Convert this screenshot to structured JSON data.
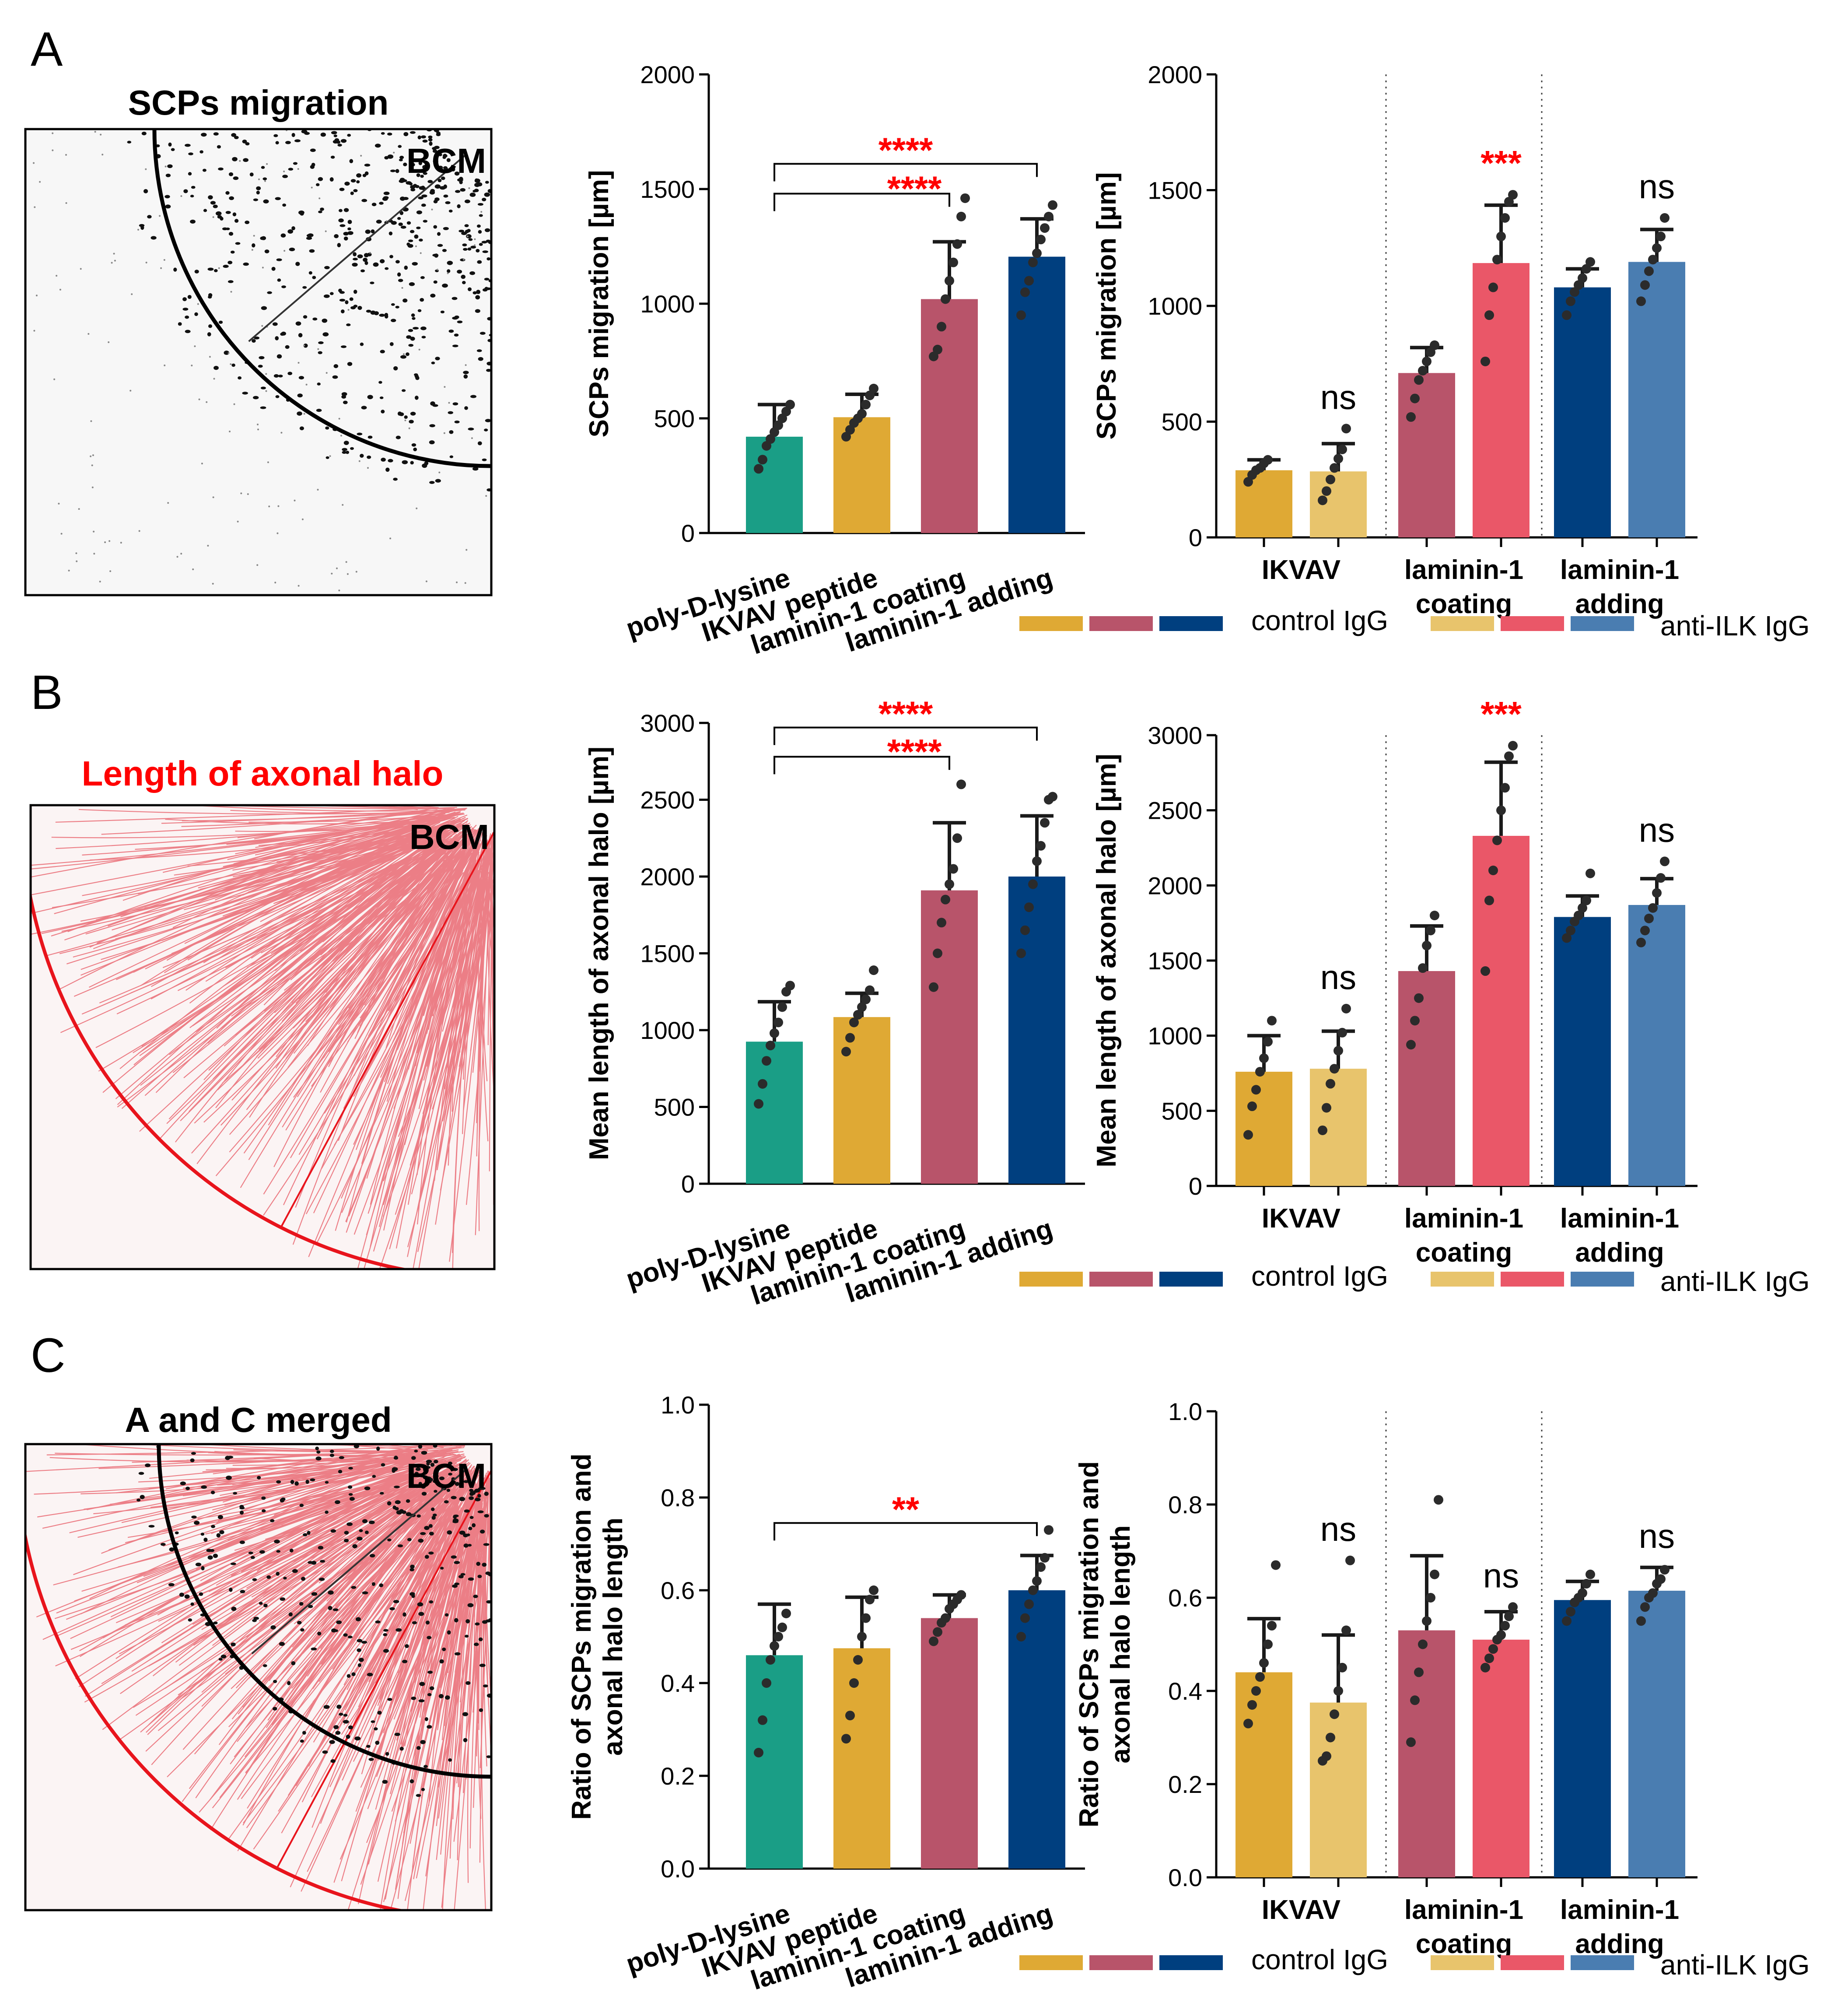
{
  "panels": {
    "A": {
      "letter": "A",
      "image": {
        "title": "SCPs migration",
        "title_color": "#000000",
        "tag": "BCM",
        "kind": "gray"
      },
      "charts": [
        {
          "type": "bar",
          "ylabel": "SCPs migration [µm]",
          "ylim": [
            0,
            2000
          ],
          "yticks": [
            "0",
            "500",
            "1000",
            "1500",
            "2000"
          ],
          "categories": [
            "poly-D-lysine",
            "IKVAV peptide",
            "laminin-1 coating",
            "laminin-1 adding"
          ],
          "values": [
            420,
            505,
            1020,
            1205
          ],
          "errors": [
            140,
            100,
            250,
            165
          ],
          "points": [
            [
              280,
              320,
              380,
              410,
              440,
              470,
              500,
              530,
              560
            ],
            [
              420,
              450,
              480,
              500,
              520,
              560,
              600,
              630
            ],
            [
              770,
              800,
              900,
              1020,
              1100,
              1180,
              1260,
              1380,
              1460
            ],
            [
              950,
              1050,
              1100,
              1180,
              1220,
              1280,
              1330,
              1380,
              1430
            ]
          ],
          "colors": [
            "#1a9e86",
            "#dfa934",
            "#b8546a",
            "#003f7f"
          ],
          "brackets": [
            {
              "from": 0,
              "to": 2,
              "level": 1480,
              "label": "****"
            },
            {
              "from": 0,
              "to": 3,
              "level": 1610,
              "label": "****"
            }
          ]
        },
        {
          "type": "bar",
          "ylabel": "SCPs migration [µm]",
          "ylim": [
            0,
            2000
          ],
          "yticks": [
            "0",
            "500",
            "1000",
            "1500",
            "2000"
          ],
          "groups": [
            "IKVAV",
            "laminin-1\ncoating",
            "laminin-1\nadding"
          ],
          "series": [
            {
              "name": "control IgG",
              "values": [
                290,
                710,
                1080
              ],
              "errors": [
                45,
                110,
                80
              ],
              "points": [
                [
                  240,
                  270,
                  290,
                  300,
                  320,
                  335
                ],
                [
                  520,
                  600,
                  680,
                  720,
                  760,
                  800,
                  830
                ],
                [
                  960,
                  1020,
                  1060,
                  1090,
                  1120,
                  1160,
                  1190
                ]
              ]
            },
            {
              "name": "anti-ILK IgG",
              "values": [
                285,
                1185,
                1190
              ],
              "errors": [
                120,
                250,
                140
              ],
              "points": [
                [
                  160,
                  200,
                  250,
                  300,
                  340,
                  380,
                  470
                ],
                [
                  760,
                  960,
                  1080,
                  1200,
                  1300,
                  1380,
                  1450,
                  1480
                ],
                [
                  1020,
                  1090,
                  1150,
                  1200,
                  1250,
                  1300,
                  1380
                ]
              ]
            }
          ],
          "colors": [
            [
              "#dfa934",
              "#b8546a",
              "#003f7f"
            ],
            [
              "#e8c46c",
              "#ea5768",
              "#4a7db1"
            ]
          ],
          "annotations": [
            {
              "group": 0,
              "series": 1,
              "label": "ns",
              "kind": "ns"
            },
            {
              "group": 1,
              "series": 1,
              "label": "***",
              "kind": "sig"
            },
            {
              "group": 2,
              "series": 1,
              "label": "ns",
              "kind": "ns"
            }
          ]
        }
      ]
    },
    "B": {
      "letter": "B",
      "image": {
        "title": "Length of axonal halo",
        "title_color": "#ff0000",
        "tag": "BCM",
        "kind": "red"
      },
      "charts": [
        {
          "type": "bar",
          "ylabel": "Mean length of axonal halo [µm]",
          "ylim": [
            0,
            3000
          ],
          "yticks": [
            "0",
            "500",
            "1000",
            "1500",
            "2000",
            "2500",
            "3000"
          ],
          "categories": [
            "poly-D-lysine",
            "IKVAV peptide",
            "laminin-1 coating",
            "laminin-1 adding"
          ],
          "values": [
            925,
            1085,
            1910,
            2000
          ],
          "errors": [
            260,
            155,
            440,
            395
          ],
          "points": [
            [
              520,
              650,
              800,
              900,
              980,
              1050,
              1150,
              1250,
              1290
            ],
            [
              860,
              950,
              1050,
              1100,
              1150,
              1200,
              1260,
              1390
            ],
            [
              1280,
              1500,
              1700,
              1850,
              1950,
              2050,
              2250,
              2600
            ],
            [
              1500,
              1650,
              1800,
              1950,
              2100,
              2200,
              2350,
              2500,
              2520
            ]
          ],
          "colors": [
            "#1a9e86",
            "#dfa934",
            "#b8546a",
            "#003f7f"
          ],
          "brackets": [
            {
              "from": 0,
              "to": 2,
              "level": 2780,
              "label": "****"
            },
            {
              "from": 0,
              "to": 3,
              "level": 2970,
              "label": "****"
            }
          ]
        },
        {
          "type": "bar",
          "ylabel": "Mean length of axonal halo [µm]",
          "ylim": [
            0,
            3000
          ],
          "yticks": [
            "0",
            "500",
            "1000",
            "1500",
            "2000",
            "2500",
            "3000"
          ],
          "groups": [
            "IKVAV",
            "laminin-1\ncoating",
            "laminin-1\nadding"
          ],
          "series": [
            {
              "name": "control IgG",
              "values": [
                760,
                1430,
                1790
              ],
              "errors": [
                240,
                300,
                140
              ],
              "points": [
                [
                  340,
                  530,
                  640,
                  760,
                  850,
                  960,
                  1100
                ],
                [
                  940,
                  1100,
                  1250,
                  1450,
                  1600,
                  1700,
                  1800
                ],
                [
                  1650,
                  1700,
                  1760,
                  1800,
                  1850,
                  1900,
                  2080
                ]
              ],
              "bar_color": "x"
            },
            {
              "name": "anti-ILK IgG",
              "values": [
                780,
                2330,
                1870
              ],
              "errors": [
                250,
                490,
                175
              ],
              "points": [
                [
                  370,
                  520,
                  680,
                  780,
                  900,
                  1020,
                  1180
                ],
                [
                  1430,
                  1900,
                  2100,
                  2300,
                  2500,
                  2650,
                  2860,
                  2930
                ],
                [
                  1620,
                  1700,
                  1780,
                  1850,
                  1950,
                  2050,
                  2160
                ]
              ]
            }
          ],
          "colors": [
            [
              "#dfa934",
              "#b8546a",
              "#003f7f"
            ],
            [
              "#e8c46c",
              "#ea5768",
              "#4a7db1"
            ]
          ],
          "annotations": [
            {
              "group": 0,
              "series": 1,
              "label": "ns",
              "kind": "ns"
            },
            {
              "group": 1,
              "series": 1,
              "label": "***",
              "kind": "sig"
            },
            {
              "group": 2,
              "series": 1,
              "label": "ns",
              "kind": "ns"
            }
          ]
        }
      ]
    },
    "C": {
      "letter": "C",
      "image": {
        "title": "A and C merged",
        "title_color": "#000000",
        "tag": "BCM",
        "kind": "merged"
      },
      "charts": [
        {
          "type": "bar",
          "ylabel": "Ratio of SCPs migration and\naxonal halo length",
          "ylim": [
            0,
            1.0
          ],
          "yticks": [
            "0.0",
            "0.2",
            "0.4",
            "0.6",
            "0.8",
            "1.0"
          ],
          "categories": [
            "poly-D-lysine",
            "IKVAV peptide",
            "laminin-1 coating",
            "laminin-1 adding"
          ],
          "values": [
            0.46,
            0.475,
            0.54,
            0.6
          ],
          "errors": [
            0.11,
            0.11,
            0.05,
            0.075
          ],
          "points": [
            [
              0.25,
              0.32,
              0.4,
              0.45,
              0.48,
              0.5,
              0.52,
              0.55
            ],
            [
              0.28,
              0.33,
              0.4,
              0.45,
              0.5,
              0.54,
              0.58,
              0.6
            ],
            [
              0.49,
              0.51,
              0.53,
              0.54,
              0.56,
              0.57,
              0.58,
              0.59
            ],
            [
              0.5,
              0.54,
              0.57,
              0.6,
              0.62,
              0.65,
              0.67,
              0.73
            ]
          ],
          "colors": [
            "#1a9e86",
            "#dfa934",
            "#b8546a",
            "#003f7f"
          ],
          "brackets": [
            {
              "from": 0,
              "to": 3,
              "level": 0.745,
              "label": "**"
            }
          ]
        },
        {
          "type": "bar",
          "ylabel": "Ratio of SCPs migration and\naxonal halo length",
          "ylim": [
            0,
            1.0
          ],
          "yticks": [
            "0.0",
            "0.2",
            "0.4",
            "0.6",
            "0.8",
            "1.0"
          ],
          "groups": [
            "IKVAV",
            "laminin-1\ncoating",
            "laminin-1\nadding"
          ],
          "series": [
            {
              "name": "control IgG",
              "values": [
                0.44,
                0.53,
                0.595
              ],
              "errors": [
                0.115,
                0.16,
                0.04
              ],
              "points": [
                [
                  0.33,
                  0.37,
                  0.4,
                  0.43,
                  0.46,
                  0.5,
                  0.54,
                  0.67
                ],
                [
                  0.29,
                  0.38,
                  0.44,
                  0.5,
                  0.55,
                  0.6,
                  0.65,
                  0.81
                ],
                [
                  0.55,
                  0.57,
                  0.59,
                  0.6,
                  0.61,
                  0.63,
                  0.65
                ]
              ]
            },
            {
              "name": "anti-ILK IgG",
              "values": [
                0.375,
                0.51,
                0.615
              ],
              "errors": [
                0.145,
                0.06,
                0.05
              ],
              "points": [
                [
                  0.25,
                  0.26,
                  0.3,
                  0.35,
                  0.4,
                  0.45,
                  0.53,
                  0.68
                ],
                [
                  0.45,
                  0.47,
                  0.49,
                  0.51,
                  0.52,
                  0.54,
                  0.56,
                  0.58
                ],
                [
                  0.55,
                  0.58,
                  0.6,
                  0.61,
                  0.63,
                  0.64,
                  0.66
                ]
              ]
            }
          ],
          "colors": [
            [
              "#dfa934",
              "#b8546a",
              "#003f7f"
            ],
            [
              "#e8c46c",
              "#ea5768",
              "#4a7db1"
            ]
          ],
          "annotations": [
            {
              "group": 0,
              "series": 1,
              "label": "ns",
              "kind": "ns"
            },
            {
              "group": 1,
              "series": 1,
              "label": "ns",
              "kind": "ns"
            },
            {
              "group": 2,
              "series": 1,
              "label": "ns",
              "kind": "ns"
            }
          ]
        }
      ]
    }
  },
  "legend": {
    "control": "control IgG",
    "anti": "anti-ILK IgG"
  }
}
